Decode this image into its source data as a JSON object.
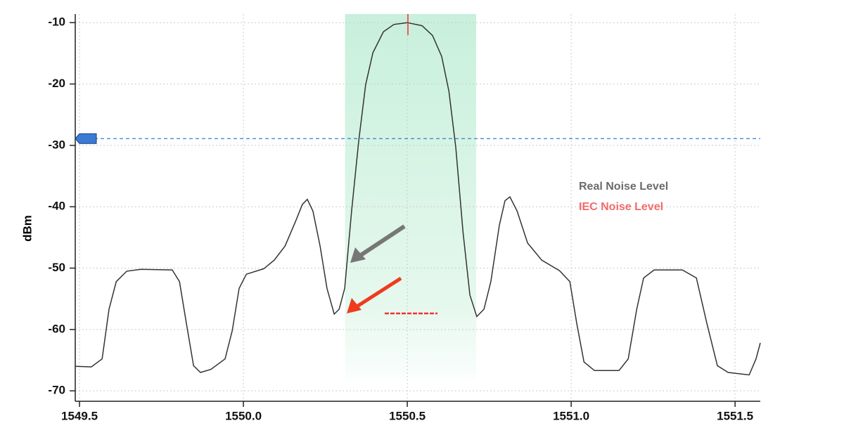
{
  "chart_data": {
    "type": "line",
    "y_label": "dBm",
    "x": [
      1549.487,
      1549.536,
      1549.569,
      1549.59,
      1549.612,
      1549.644,
      1549.687,
      1549.783,
      1549.805,
      1549.826,
      1549.848,
      1549.869,
      1549.901,
      1549.944,
      1549.966,
      1549.987,
      1550.009,
      1550.062,
      1550.094,
      1550.127,
      1550.159,
      1550.18,
      1550.195,
      1550.212,
      1550.234,
      1550.255,
      1550.277,
      1550.292,
      1550.309,
      1550.33,
      1550.352,
      1550.373,
      1550.395,
      1550.427,
      1550.459,
      1550.5,
      1550.545,
      1550.577,
      1550.605,
      1550.627,
      1550.648,
      1550.67,
      1550.691,
      1550.712,
      1550.734,
      1550.755,
      1550.781,
      1550.798,
      1550.813,
      1550.835,
      1550.867,
      1550.91,
      1550.964,
      1550.996,
      1551.017,
      1551.039,
      1551.071,
      1551.146,
      1551.174,
      1551.2,
      1551.221,
      1551.253,
      1551.339,
      1551.382,
      1551.414,
      1551.446,
      1551.479,
      1551.543,
      1551.564,
      1551.577
    ],
    "series": [
      {
        "color": "#333333",
        "values": [
          -66.0,
          -66.1,
          -64.8,
          -56.7,
          -52.2,
          -50.5,
          -50.2,
          -50.3,
          -52.2,
          -59.0,
          -65.9,
          -67.0,
          -66.5,
          -64.8,
          -60.2,
          -53.3,
          -51.0,
          -50.1,
          -48.7,
          -46.4,
          -42.4,
          -39.6,
          -38.8,
          -40.7,
          -46.4,
          -53.3,
          -57.5,
          -56.7,
          -53.3,
          -40.7,
          -29.2,
          -20.1,
          -14.9,
          -11.5,
          -10.3,
          -10.0,
          -10.5,
          -12.1,
          -15.5,
          -21.2,
          -30.4,
          -44.1,
          -54.4,
          -57.9,
          -56.7,
          -52.2,
          -43.0,
          -39.0,
          -38.4,
          -40.7,
          -45.9,
          -48.7,
          -50.4,
          -52.2,
          -59.0,
          -65.3,
          -66.7,
          -66.7,
          -64.8,
          -56.7,
          -51.6,
          -50.3,
          -50.3,
          -51.6,
          -59.0,
          -65.9,
          -67.0,
          -67.4,
          -64.8,
          -62.2
        ]
      }
    ],
    "xlim": [
      1549.487,
      1551.577
    ],
    "ylim": [
      -71.7,
      -8.6
    ],
    "xticks": [
      1549.5,
      {
        "value": 1550.0,
        "label": "1550.0"
      },
      1550.5,
      {
        "value": 1551.0,
        "label": "1551.0"
      },
      1551.5
    ],
    "yticks": [
      -10,
      -20,
      -30,
      -40,
      -50,
      -60,
      -70
    ],
    "grid": true,
    "threshold": -28.9,
    "threshold_color": "#3a7bd5",
    "band": [
      1550.31,
      1550.71
    ],
    "annotations": [
      "Real Noise Level",
      "IEC Noise Level"
    ]
  }
}
